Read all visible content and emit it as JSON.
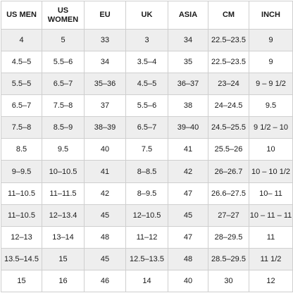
{
  "size_chart": {
    "columns": [
      "US MEN",
      "US WOMEN",
      "EU",
      "UK",
      "ASIA",
      "CM",
      "INCH"
    ],
    "rows": [
      [
        "4",
        "5",
        "33",
        "3",
        "34",
        "22.5–23.5",
        "9"
      ],
      [
        "4.5–5",
        "5.5–6",
        "34",
        "3.5–4",
        "35",
        "22.5–23.5",
        "9"
      ],
      [
        "5.5–5",
        "6.5–7",
        "35–36",
        "4.5–5",
        "36–37",
        "23–24",
        "9 – 9 1/2"
      ],
      [
        "6.5–7",
        "7.5–8",
        "37",
        "5.5–6",
        "38",
        "24–24.5",
        "9.5"
      ],
      [
        "7.5–8",
        "8.5–9",
        "38–39",
        "6.5–7",
        "39–40",
        "24.5–25.5",
        "9 1/2 – 10"
      ],
      [
        "8.5",
        "9.5",
        "40",
        "7.5",
        "41",
        "25.5–26",
        "10"
      ],
      [
        "9–9.5",
        "10–10.5",
        "41",
        "8–8.5",
        "42",
        "26–26.7",
        "10 – 10 1/2"
      ],
      [
        "11–10.5",
        "11–11.5",
        "42",
        "8–9.5",
        "47",
        "26.6–27.5",
        "10– 11"
      ],
      [
        "11–10.5",
        "12–13.4",
        "45",
        "12–10.5",
        "45",
        "27–27",
        "10 – 11 – 11"
      ],
      [
        "12–13",
        "13–14",
        "48",
        "11–12",
        "47",
        "28–29.5",
        "11"
      ],
      [
        "13.5–14.5",
        "15",
        "45",
        "12.5–13.5",
        "48",
        "28.5–29.5",
        "11 1/2"
      ],
      [
        "15",
        "16",
        "46",
        "14",
        "40",
        "30",
        "12"
      ]
    ]
  }
}
